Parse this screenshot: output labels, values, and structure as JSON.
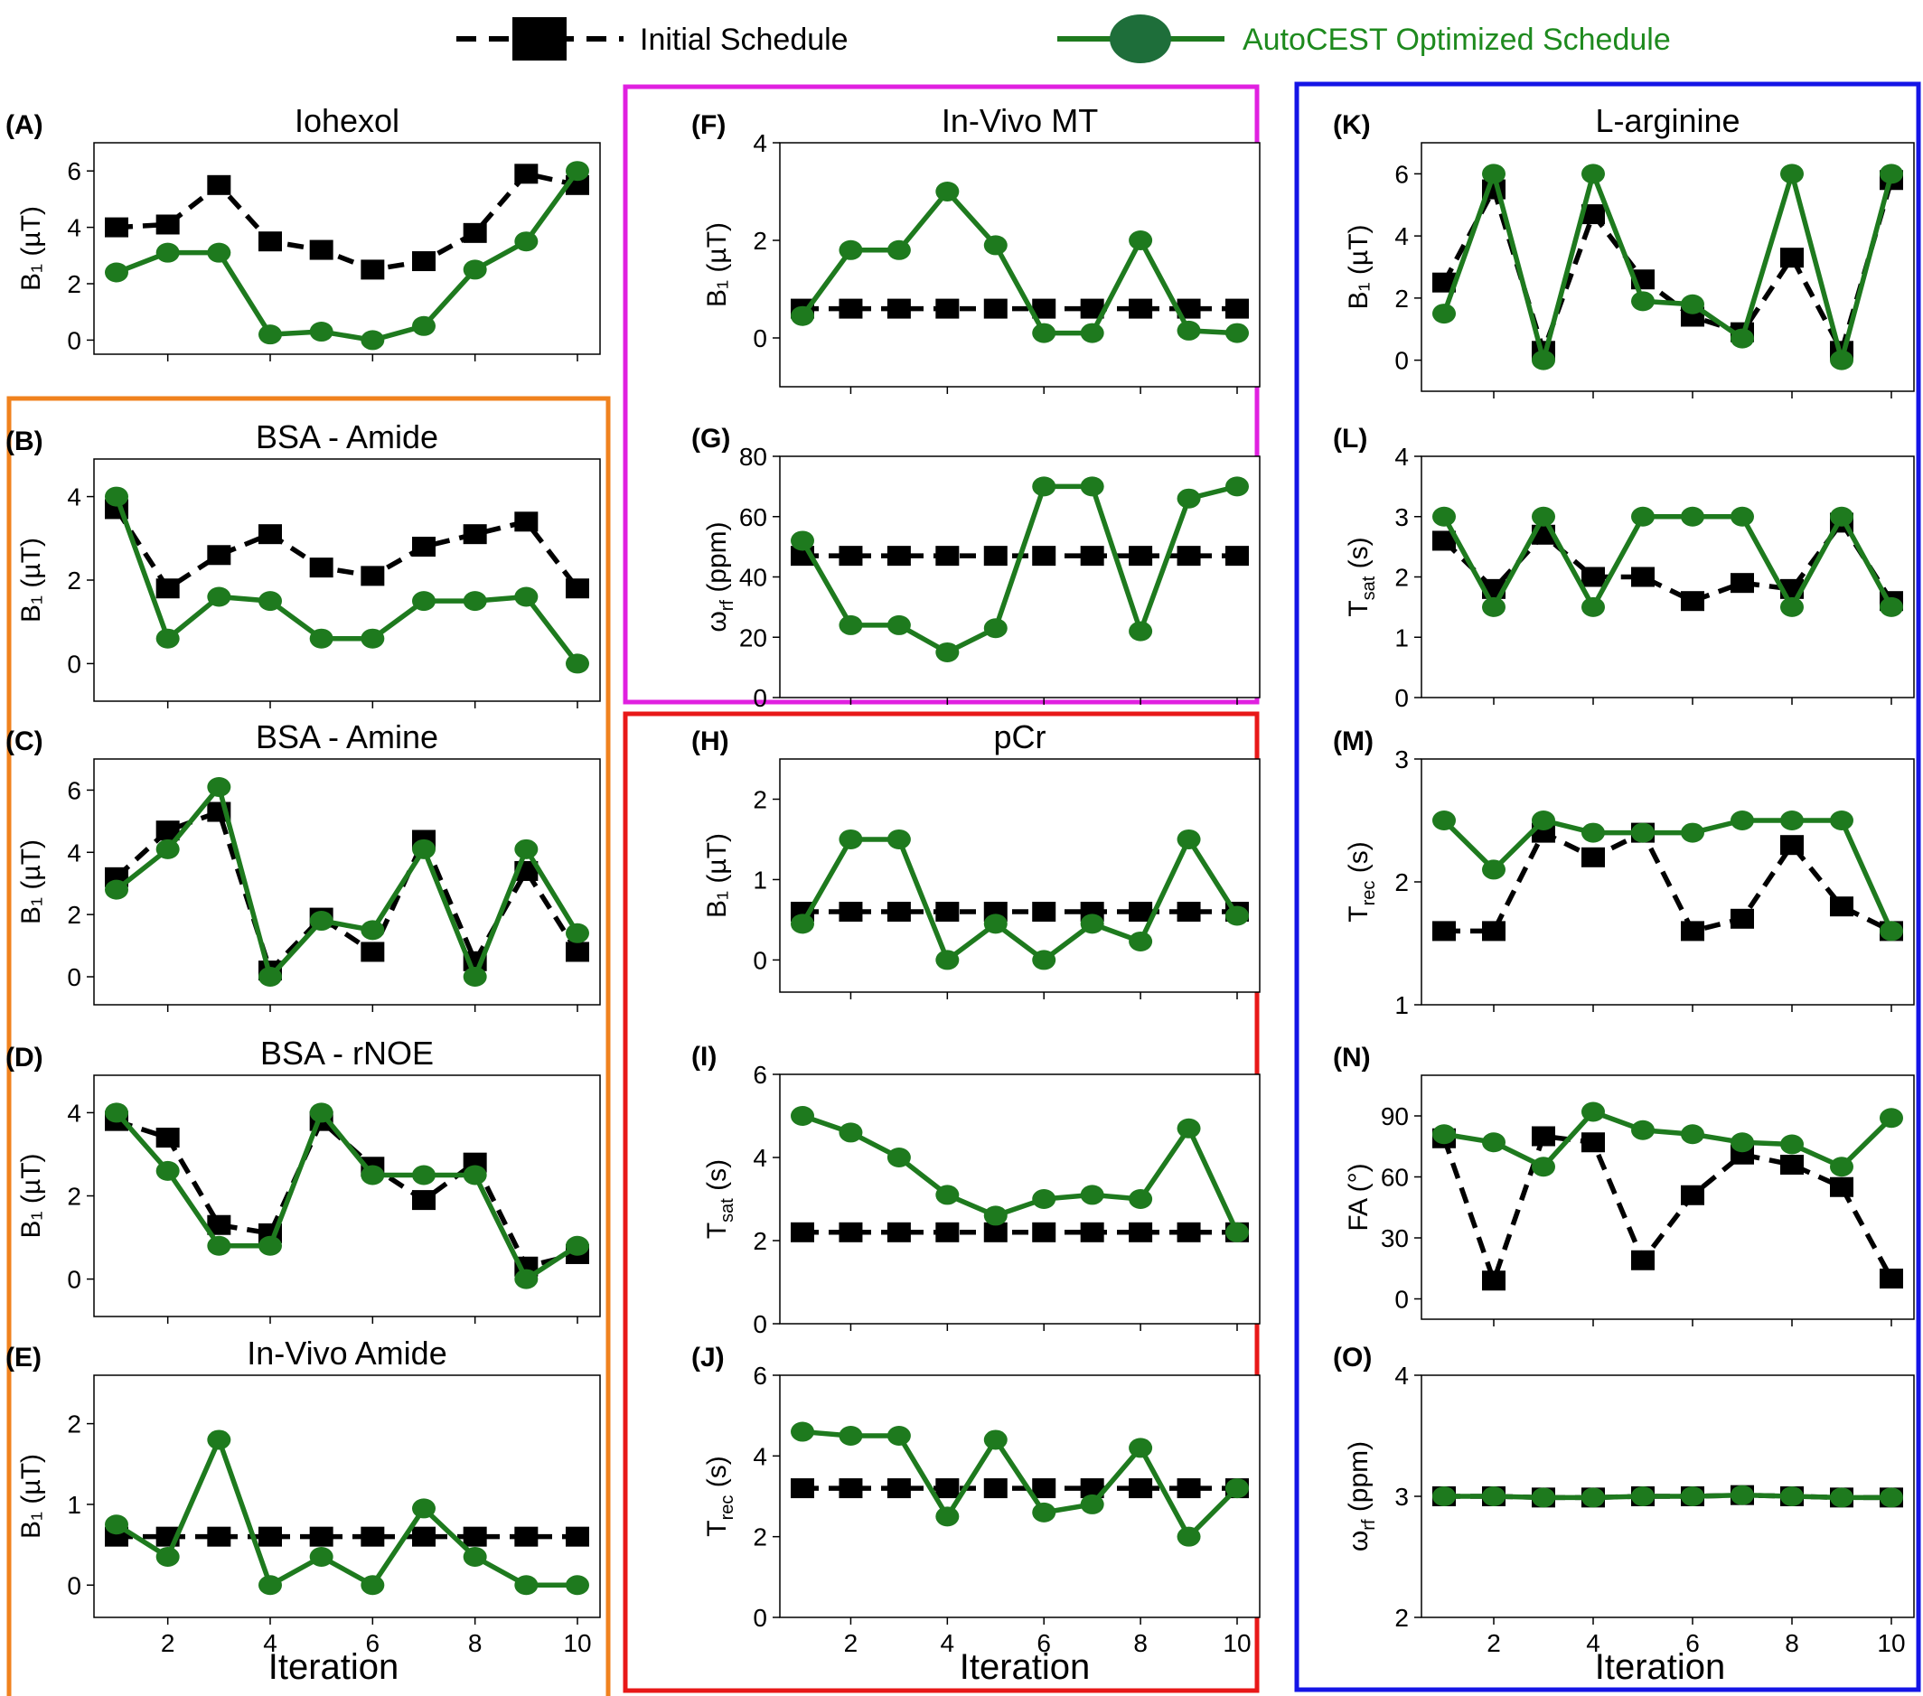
{
  "legend": {
    "initial": "Initial Schedule",
    "optimized": "AutoCEST Optimized Schedule",
    "initial_color": "#000000",
    "optimized_color": "#1e7a1e"
  },
  "x_label": "Iteration",
  "group_colors": {
    "orange": "#f0821e",
    "magenta": "#e020e0",
    "red": "#e81818",
    "blue": "#1414e6"
  },
  "chart_data": [
    {
      "id": "A",
      "label": "(A)",
      "title": "Iohexol",
      "type": "line",
      "ylabel": "B₁ (µT)",
      "ylim": [
        -0.5,
        7
      ],
      "yticks": [
        0,
        2,
        4,
        6
      ],
      "show_xticks": false,
      "x": [
        1,
        2,
        3,
        4,
        5,
        6,
        7,
        8,
        9,
        10
      ],
      "series": [
        {
          "name": "Initial Schedule",
          "values": [
            4.0,
            4.1,
            5.5,
            3.5,
            3.2,
            2.5,
            2.8,
            3.8,
            5.9,
            5.5
          ]
        },
        {
          "name": "AutoCEST Optimized Schedule",
          "values": [
            2.4,
            3.1,
            3.1,
            0.2,
            0.3,
            0.0,
            0.5,
            2.5,
            3.5,
            6.0
          ]
        }
      ]
    },
    {
      "id": "B",
      "label": "(B)",
      "title": "BSA - Amide",
      "type": "line",
      "ylabel": "B₁ (µT)",
      "ylim": [
        -0.9,
        4.9
      ],
      "yticks": [
        0,
        2,
        4
      ],
      "show_xticks": false,
      "x": [
        1,
        2,
        3,
        4,
        5,
        6,
        7,
        8,
        9,
        10
      ],
      "series": [
        {
          "name": "Initial Schedule",
          "values": [
            3.7,
            1.8,
            2.6,
            3.1,
            2.3,
            2.1,
            2.8,
            3.1,
            3.4,
            1.8
          ]
        },
        {
          "name": "AutoCEST Optimized Schedule",
          "values": [
            4.0,
            0.6,
            1.6,
            1.5,
            0.6,
            0.6,
            1.5,
            1.5,
            1.6,
            0.0
          ]
        }
      ]
    },
    {
      "id": "C",
      "label": "(C)",
      "title": "BSA - Amine",
      "type": "line",
      "ylabel": "B₁ (µT)",
      "ylim": [
        -0.9,
        7
      ],
      "yticks": [
        0,
        2,
        4,
        6
      ],
      "show_xticks": false,
      "x": [
        1,
        2,
        3,
        4,
        5,
        6,
        7,
        8,
        9,
        10
      ],
      "series": [
        {
          "name": "Initial Schedule",
          "values": [
            3.2,
            4.7,
            5.3,
            0.2,
            1.9,
            0.8,
            4.4,
            0.5,
            3.4,
            0.8
          ]
        },
        {
          "name": "AutoCEST Optimized Schedule",
          "values": [
            2.8,
            4.1,
            6.1,
            0.0,
            1.8,
            1.5,
            4.1,
            0.0,
            4.1,
            1.4
          ]
        }
      ]
    },
    {
      "id": "D",
      "label": "(D)",
      "title": "BSA - rNOE",
      "type": "line",
      "ylabel": "B₁ (µT)",
      "ylim": [
        -0.9,
        4.9
      ],
      "yticks": [
        0,
        2,
        4
      ],
      "show_xticks": false,
      "x": [
        1,
        2,
        3,
        4,
        5,
        6,
        7,
        8,
        9,
        10
      ],
      "series": [
        {
          "name": "Initial Schedule",
          "values": [
            3.8,
            3.4,
            1.3,
            1.1,
            3.8,
            2.7,
            1.9,
            2.8,
            0.3,
            0.6
          ]
        },
        {
          "name": "AutoCEST Optimized Schedule",
          "values": [
            4.0,
            2.6,
            0.8,
            0.8,
            4.0,
            2.5,
            2.5,
            2.5,
            0.0,
            0.8
          ]
        }
      ]
    },
    {
      "id": "E",
      "label": "(E)",
      "title": "In-Vivo Amide",
      "type": "line",
      "ylabel": "B₁ (µT)",
      "ylim": [
        -0.4,
        2.6
      ],
      "yticks": [
        0,
        1,
        2
      ],
      "show_xticks": true,
      "x": [
        1,
        2,
        3,
        4,
        5,
        6,
        7,
        8,
        9,
        10
      ],
      "series": [
        {
          "name": "Initial Schedule",
          "values": [
            0.6,
            0.6,
            0.6,
            0.6,
            0.6,
            0.6,
            0.6,
            0.6,
            0.6,
            0.6
          ]
        },
        {
          "name": "AutoCEST Optimized Schedule",
          "values": [
            0.75,
            0.35,
            1.8,
            0.0,
            0.35,
            0.0,
            0.95,
            0.35,
            0.0,
            0.0
          ]
        }
      ]
    },
    {
      "id": "F",
      "label": "(F)",
      "title": "In-Vivo MT",
      "type": "line",
      "ylabel": "B₁ (µT)",
      "ylim": [
        -1,
        4
      ],
      "yticks": [
        0,
        2,
        4
      ],
      "show_xticks": false,
      "x": [
        1,
        2,
        3,
        4,
        5,
        6,
        7,
        8,
        9,
        10
      ],
      "series": [
        {
          "name": "Initial Schedule",
          "values": [
            0.6,
            0.6,
            0.6,
            0.6,
            0.6,
            0.6,
            0.6,
            0.6,
            0.6,
            0.6
          ]
        },
        {
          "name": "AutoCEST Optimized Schedule",
          "values": [
            0.45,
            1.8,
            1.8,
            3.0,
            1.9,
            0.1,
            0.1,
            2.0,
            0.15,
            0.1
          ]
        }
      ]
    },
    {
      "id": "G",
      "label": "(G)",
      "title": "",
      "type": "line",
      "ylabel": "ωrf (ppm)",
      "ylim": [
        0,
        80
      ],
      "yticks": [
        0,
        20,
        40,
        60,
        80
      ],
      "show_xticks": false,
      "x": [
        1,
        2,
        3,
        4,
        5,
        6,
        7,
        8,
        9,
        10
      ],
      "series": [
        {
          "name": "Initial Schedule",
          "values": [
            47,
            47,
            47,
            47,
            47,
            47,
            47,
            47,
            47,
            47
          ]
        },
        {
          "name": "AutoCEST Optimized Schedule",
          "values": [
            52,
            24,
            24,
            15,
            23,
            70,
            70,
            22,
            66,
            70
          ]
        }
      ]
    },
    {
      "id": "H",
      "label": "(H)",
      "title": "pCr",
      "type": "line",
      "ylabel": "B₁ (µT)",
      "ylim": [
        -0.4,
        2.5
      ],
      "yticks": [
        0,
        1,
        2
      ],
      "show_xticks": false,
      "x": [
        1,
        2,
        3,
        4,
        5,
        6,
        7,
        8,
        9,
        10
      ],
      "series": [
        {
          "name": "Initial Schedule",
          "values": [
            0.6,
            0.6,
            0.6,
            0.6,
            0.6,
            0.6,
            0.6,
            0.6,
            0.6,
            0.6
          ]
        },
        {
          "name": "AutoCEST Optimized Schedule",
          "values": [
            0.45,
            1.5,
            1.5,
            0.0,
            0.45,
            0.0,
            0.45,
            0.23,
            1.5,
            0.55
          ]
        }
      ]
    },
    {
      "id": "I",
      "label": "(I)",
      "title": "",
      "type": "line",
      "ylabel": "Tsat (s)",
      "ylim": [
        0,
        6
      ],
      "yticks": [
        0,
        2,
        4,
        6
      ],
      "show_xticks": false,
      "x": [
        1,
        2,
        3,
        4,
        5,
        6,
        7,
        8,
        9,
        10
      ],
      "series": [
        {
          "name": "Initial Schedule",
          "values": [
            2.2,
            2.2,
            2.2,
            2.2,
            2.2,
            2.2,
            2.2,
            2.2,
            2.2,
            2.2
          ]
        },
        {
          "name": "AutoCEST Optimized Schedule",
          "values": [
            5.0,
            4.6,
            4.0,
            3.1,
            2.6,
            3.0,
            3.1,
            3.0,
            4.7,
            2.2
          ]
        }
      ]
    },
    {
      "id": "J",
      "label": "(J)",
      "title": "",
      "type": "line",
      "ylabel": "Trec (s)",
      "ylim": [
        0,
        6
      ],
      "yticks": [
        0,
        2,
        4,
        6
      ],
      "show_xticks": true,
      "x": [
        1,
        2,
        3,
        4,
        5,
        6,
        7,
        8,
        9,
        10
      ],
      "series": [
        {
          "name": "Initial Schedule",
          "values": [
            3.2,
            3.2,
            3.2,
            3.2,
            3.2,
            3.2,
            3.2,
            3.2,
            3.2,
            3.2
          ]
        },
        {
          "name": "AutoCEST Optimized Schedule",
          "values": [
            4.6,
            4.5,
            4.5,
            2.5,
            4.4,
            2.6,
            2.8,
            4.2,
            2.0,
            3.2
          ]
        }
      ]
    },
    {
      "id": "K",
      "label": "(K)",
      "title": "L-arginine",
      "type": "line",
      "ylabel": "B₁ (µT)",
      "ylim": [
        -1,
        7
      ],
      "yticks": [
        0,
        2,
        4,
        6
      ],
      "show_xticks": false,
      "x": [
        1,
        2,
        3,
        4,
        5,
        6,
        7,
        8,
        9,
        10
      ],
      "series": [
        {
          "name": "Initial Schedule",
          "values": [
            2.5,
            5.5,
            0.3,
            4.7,
            2.6,
            1.4,
            0.9,
            3.3,
            0.3,
            5.8
          ]
        },
        {
          "name": "AutoCEST Optimized Schedule",
          "values": [
            1.5,
            6.0,
            0.0,
            6.0,
            1.9,
            1.8,
            0.7,
            6.0,
            0.0,
            6.0
          ]
        }
      ]
    },
    {
      "id": "L",
      "label": "(L)",
      "title": "",
      "type": "line",
      "ylabel": "Tsat (s)",
      "ylim": [
        0,
        4
      ],
      "yticks": [
        0,
        1,
        2,
        3,
        4
      ],
      "show_xticks": false,
      "x": [
        1,
        2,
        3,
        4,
        5,
        6,
        7,
        8,
        9,
        10
      ],
      "series": [
        {
          "name": "Initial Schedule",
          "values": [
            2.6,
            1.8,
            2.7,
            2.0,
            2.0,
            1.6,
            1.9,
            1.8,
            2.9,
            1.6
          ]
        },
        {
          "name": "AutoCEST Optimized Schedule",
          "values": [
            3.0,
            1.5,
            3.0,
            1.5,
            3.0,
            3.0,
            3.0,
            1.5,
            3.0,
            1.5
          ]
        }
      ]
    },
    {
      "id": "M",
      "label": "(M)",
      "title": "",
      "type": "line",
      "ylabel": "Trec (s)",
      "ylim": [
        1,
        3
      ],
      "yticks": [
        1,
        2,
        3
      ],
      "show_xticks": false,
      "x": [
        1,
        2,
        3,
        4,
        5,
        6,
        7,
        8,
        9,
        10
      ],
      "series": [
        {
          "name": "Initial Schedule",
          "values": [
            1.6,
            1.6,
            2.4,
            2.2,
            2.4,
            1.6,
            1.7,
            2.3,
            1.8,
            1.6
          ]
        },
        {
          "name": "AutoCEST Optimized Schedule",
          "values": [
            2.5,
            2.1,
            2.5,
            2.4,
            2.4,
            2.4,
            2.5,
            2.5,
            2.5,
            1.6
          ]
        }
      ]
    },
    {
      "id": "N",
      "label": "(N)",
      "title": "",
      "type": "line",
      "ylabel": "FA (°)",
      "ylim": [
        -10,
        110
      ],
      "yticks": [
        0,
        30,
        60,
        90
      ],
      "show_xticks": false,
      "x": [
        1,
        2,
        3,
        4,
        5,
        6,
        7,
        8,
        9,
        10
      ],
      "series": [
        {
          "name": "Initial Schedule",
          "values": [
            79,
            9,
            80,
            77,
            19,
            51,
            71,
            66,
            55,
            10
          ]
        },
        {
          "name": "AutoCEST Optimized Schedule",
          "values": [
            81,
            77,
            65,
            92,
            83,
            81,
            77,
            76,
            65,
            89
          ]
        }
      ]
    },
    {
      "id": "O",
      "label": "(O)",
      "title": "",
      "type": "line",
      "ylabel": "ωrf (ppm)",
      "ylim": [
        2,
        4
      ],
      "yticks": [
        2,
        3,
        4
      ],
      "show_xticks": true,
      "x": [
        1,
        2,
        3,
        4,
        5,
        6,
        7,
        8,
        9,
        10
      ],
      "series": [
        {
          "name": "Initial Schedule",
          "values": [
            3.0,
            3.0,
            2.99,
            2.99,
            3.0,
            3.0,
            3.01,
            3.0,
            2.99,
            2.99
          ]
        },
        {
          "name": "AutoCEST Optimized Schedule",
          "values": [
            3.0,
            3.0,
            2.99,
            2.99,
            3.0,
            3.0,
            3.01,
            3.0,
            2.99,
            2.99
          ]
        }
      ]
    }
  ]
}
